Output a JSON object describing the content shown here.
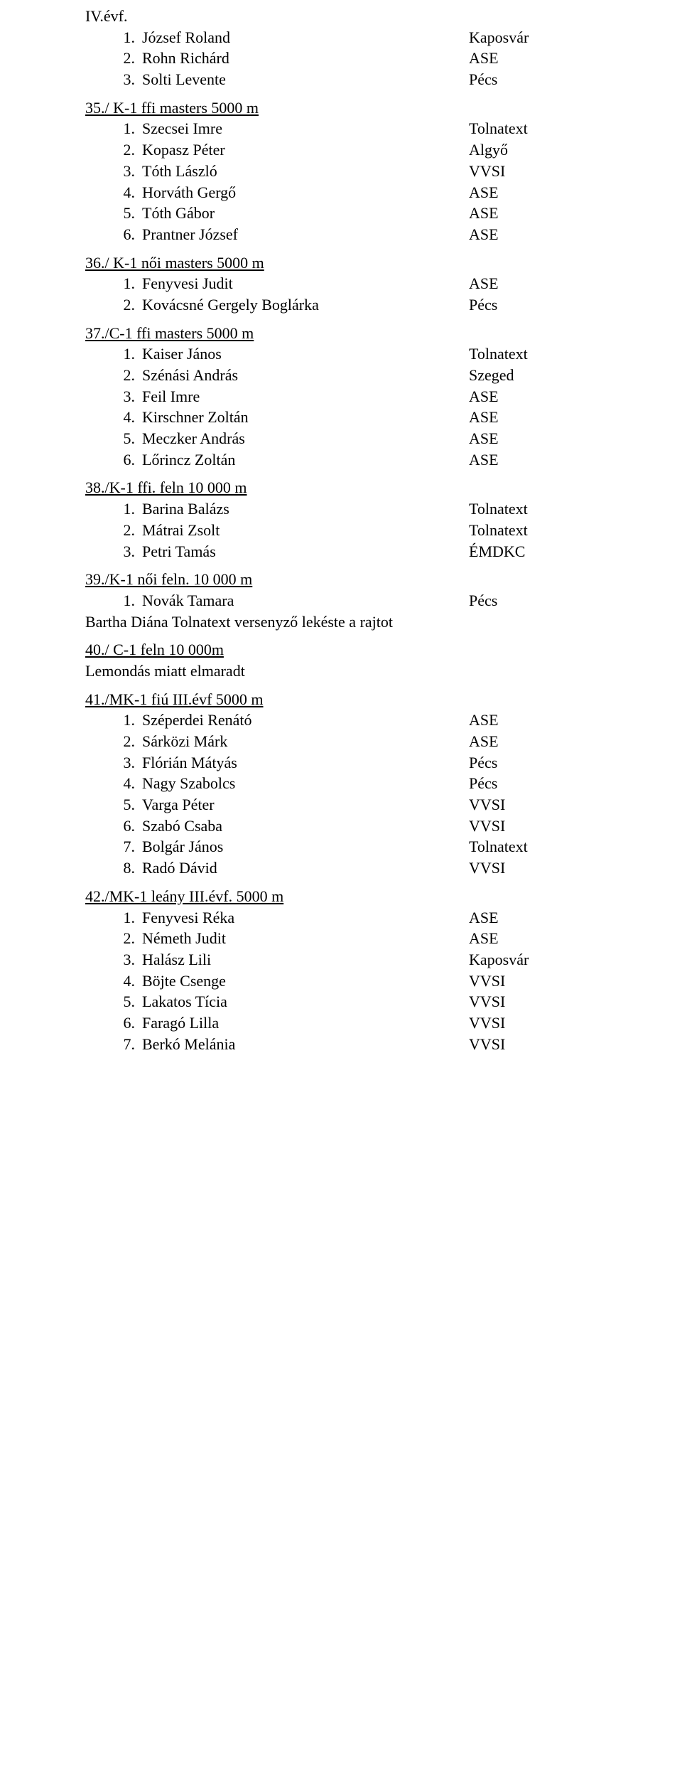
{
  "level": "IV.évf.",
  "s34": {
    "rows": [
      {
        "rank": "1.",
        "name": "József Roland",
        "club": "Kaposvár"
      },
      {
        "rank": "2.",
        "name": "Rohn Richárd",
        "club": "ASE"
      },
      {
        "rank": "3.",
        "name": "Solti Levente",
        "club": "Pécs"
      }
    ]
  },
  "s35": {
    "title": "35./ K-1 ffi masters 5000 m",
    "rows": [
      {
        "rank": "1.",
        "name": "Szecsei Imre",
        "club": "Tolnatext"
      },
      {
        "rank": "2.",
        "name": "Kopasz Péter",
        "club": "Algyő"
      },
      {
        "rank": "3.",
        "name": "Tóth László",
        "club": "VVSI"
      },
      {
        "rank": "4.",
        "name": "Horváth Gergő",
        "club": "ASE"
      },
      {
        "rank": "5.",
        "name": "Tóth Gábor",
        "club": "ASE"
      },
      {
        "rank": "6.",
        "name": "Prantner József",
        "club": "ASE"
      }
    ]
  },
  "s36": {
    "title": "36./ K-1 női masters 5000 m",
    "rows": [
      {
        "rank": "1.",
        "name": "Fenyvesi Judit",
        "club": "ASE"
      },
      {
        "rank": "2.",
        "name": "Kovácsné Gergely Boglárka",
        "club": "Pécs"
      }
    ]
  },
  "s37": {
    "title": "37./C-1 ffi masters 5000 m",
    "rows": [
      {
        "rank": "1.",
        "name": "Kaiser János",
        "club": "Tolnatext"
      },
      {
        "rank": "2.",
        "name": "Szénási András",
        "club": "Szeged"
      },
      {
        "rank": "3.",
        "name": "Feil Imre",
        "club": "ASE"
      },
      {
        "rank": "4.",
        "name": "Kirschner Zoltán",
        "club": "ASE"
      },
      {
        "rank": "5.",
        "name": "Meczker András",
        "club": "ASE"
      },
      {
        "rank": "6.",
        "name": "Lőrincz Zoltán",
        "club": "ASE"
      }
    ]
  },
  "s38": {
    "title": "38./K-1 ffi. feln 10 000 m",
    "rows": [
      {
        "rank": "1.",
        "name": "Barina Balázs",
        "club": "Tolnatext"
      },
      {
        "rank": "2.",
        "name": "Mátrai Zsolt",
        "club": "Tolnatext"
      },
      {
        "rank": "3.",
        "name": "Petri Tamás",
        "club": "ÉMDKC"
      }
    ]
  },
  "s39": {
    "title": "39./K-1 női feln. 10 000 m",
    "rows": [
      {
        "rank": "1.",
        "name": "Novák Tamara",
        "club": "Pécs"
      }
    ],
    "note": "Bartha Diána Tolnatext versenyző lekéste a rajtot"
  },
  "s40": {
    "title": "40./ C-1 feln 10 000m",
    "note": "Lemondás miatt elmaradt"
  },
  "s41": {
    "title": "41./MK-1 fiú III.évf 5000 m",
    "rows": [
      {
        "rank": "1.",
        "name": "Széperdei Renátó",
        "club": "ASE"
      },
      {
        "rank": "2.",
        "name": "Sárközi Márk",
        "club": "ASE"
      },
      {
        "rank": "3.",
        "name": "Flórián Mátyás",
        "club": "Pécs"
      },
      {
        "rank": "4.",
        "name": "Nagy Szabolcs",
        "club": "Pécs"
      },
      {
        "rank": "5.",
        "name": "Varga Péter",
        "club": "VVSI"
      },
      {
        "rank": "6.",
        "name": "Szabó Csaba",
        "club": "VVSI"
      },
      {
        "rank": "7.",
        "name": "Bolgár János",
        "club": "Tolnatext"
      },
      {
        "rank": "8.",
        "name": "Radó Dávid",
        "club": "VVSI"
      }
    ]
  },
  "s42": {
    "title": "42./MK-1 leány III.évf. 5000 m",
    "rows": [
      {
        "rank": "1.",
        "name": "Fenyvesi Réka",
        "club": "ASE"
      },
      {
        "rank": "2.",
        "name": "Németh Judit",
        "club": "ASE"
      },
      {
        "rank": "3.",
        "name": "Halász Lili",
        "club": "Kaposvár"
      },
      {
        "rank": "4.",
        "name": "Böjte Csenge",
        "club": "VVSI"
      },
      {
        "rank": "5.",
        "name": "Lakatos Tícia",
        "club": "VVSI"
      },
      {
        "rank": "6.",
        "name": "Faragó Lilla",
        "club": "VVSI"
      },
      {
        "rank": "7.",
        "name": "Berkó Melánia",
        "club": "VVSI"
      }
    ]
  }
}
